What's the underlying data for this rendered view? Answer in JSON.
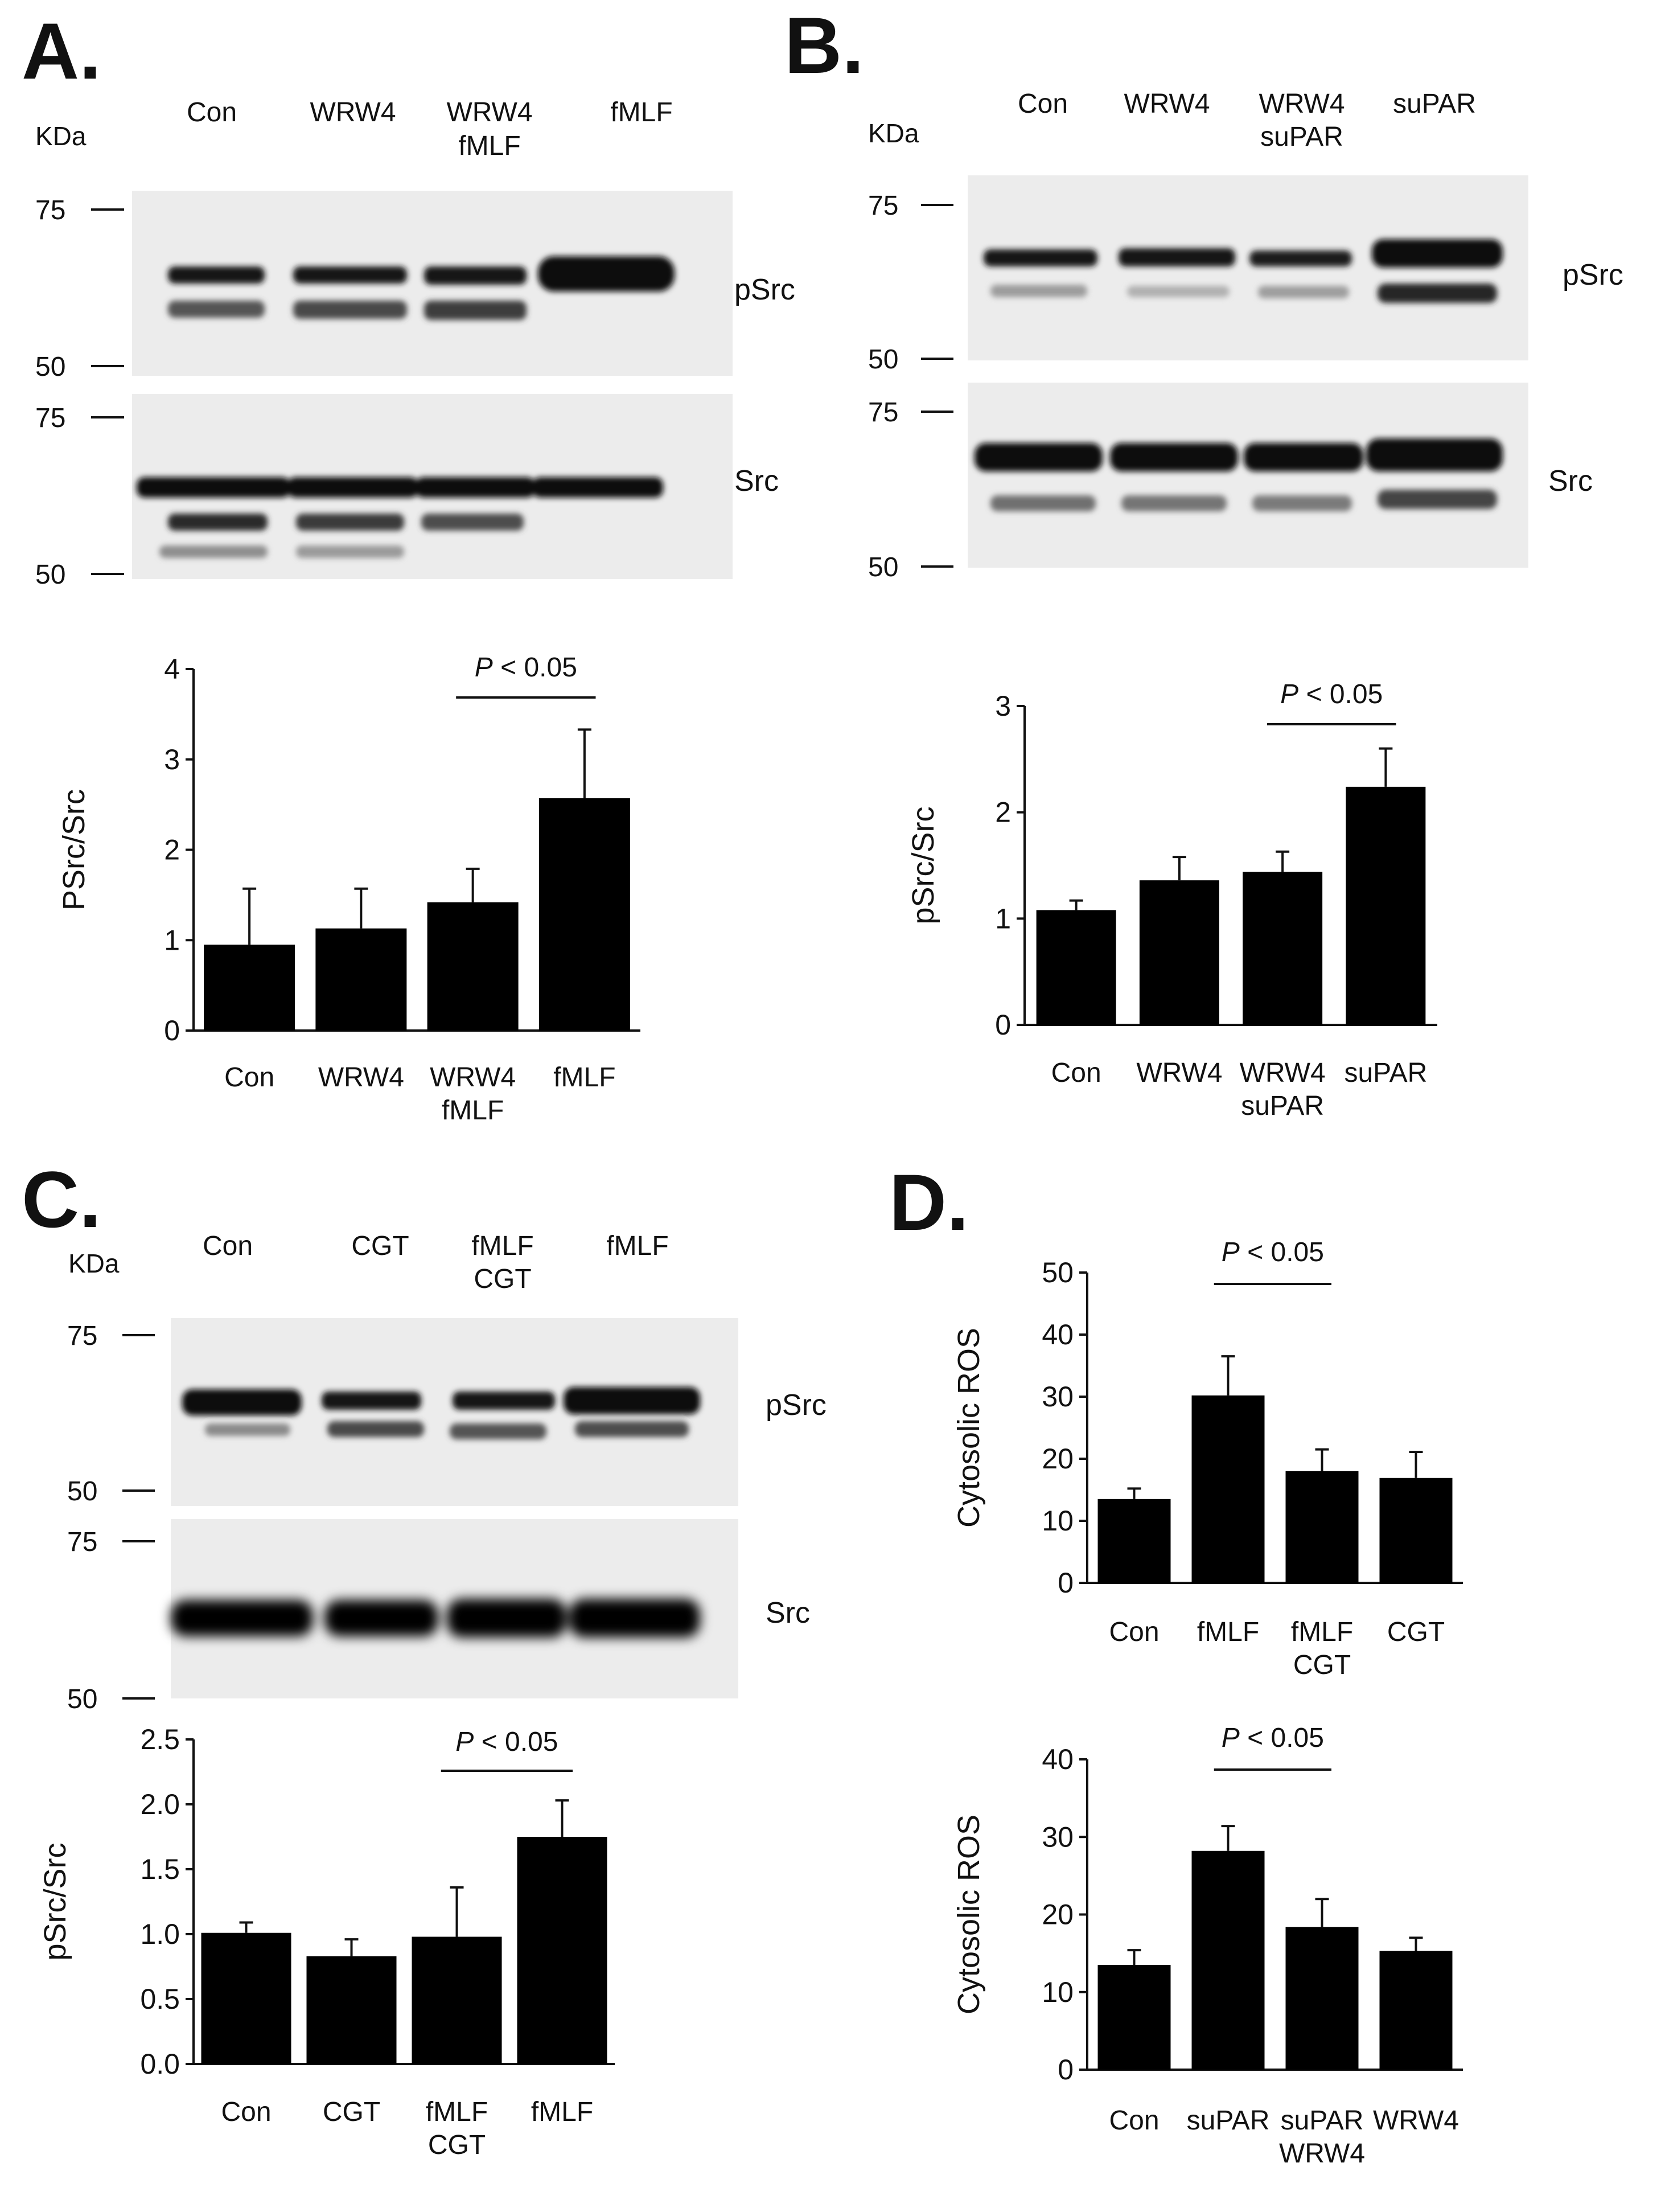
{
  "figure": {
    "panels": [
      {
        "letter": "A.",
        "kda_label": "KDa",
        "lanes": [
          [
            "Con"
          ],
          [
            "WRW4"
          ],
          [
            "WRW4",
            "fMLF"
          ],
          [
            "fMLF"
          ]
        ],
        "blots": [
          {
            "band_label": "pSrc",
            "markers": [
              "75",
              "50"
            ]
          },
          {
            "band_label": "Src",
            "markers": [
              "75",
              "50"
            ]
          }
        ]
      },
      {
        "letter": "B.",
        "kda_label": "KDa",
        "lanes": [
          [
            "Con"
          ],
          [
            "WRW4"
          ],
          [
            "WRW4",
            "suPAR"
          ],
          [
            "suPAR"
          ]
        ],
        "blots": [
          {
            "band_label": "pSrc",
            "markers": [
              "75",
              "50"
            ]
          },
          {
            "band_label": "Src",
            "markers": [
              "75",
              "50"
            ]
          }
        ]
      },
      {
        "letter": "C.",
        "kda_label": "KDa",
        "lanes": [
          [
            "Con"
          ],
          [
            "CGT"
          ],
          [
            "fMLF",
            "CGT"
          ],
          [
            "fMLF"
          ]
        ],
        "blots": [
          {
            "band_label": "pSrc",
            "markers": [
              "75",
              "50"
            ]
          },
          {
            "band_label": "Src",
            "markers": [
              "75",
              "50"
            ]
          }
        ]
      },
      {
        "letter": "D."
      }
    ]
  },
  "chart_data": [
    {
      "id": "A",
      "type": "bar",
      "categories": [
        [
          "Con"
        ],
        [
          "WRW4"
        ],
        [
          "WRW4",
          "fMLF"
        ],
        [
          "fMLF"
        ]
      ],
      "values": [
        0.95,
        1.13,
        1.42,
        2.57
      ],
      "errors": [
        0.62,
        0.44,
        0.37,
        0.76
      ],
      "ylabel": "PSrc/Src",
      "ylim": [
        0,
        4
      ],
      "yticks": [
        "0",
        "1",
        "2",
        "3",
        "4"
      ],
      "significance": {
        "label": "P < 0.05",
        "from_index": 2,
        "to_index": 3
      }
    },
    {
      "id": "B",
      "type": "bar",
      "categories": [
        [
          "Con"
        ],
        [
          "WRW4"
        ],
        [
          "WRW4",
          "suPAR"
        ],
        [
          "suPAR"
        ]
      ],
      "values": [
        1.08,
        1.36,
        1.44,
        2.24
      ],
      "errors": [
        0.09,
        0.22,
        0.19,
        0.36
      ],
      "ylabel": "pSrc/Src",
      "ylim": [
        0,
        3
      ],
      "yticks": [
        "0",
        "1",
        "2",
        "3"
      ],
      "significance": {
        "label": "P < 0.05",
        "from_index": 2,
        "to_index": 3
      }
    },
    {
      "id": "C",
      "type": "bar",
      "categories": [
        [
          "Con"
        ],
        [
          "CGT"
        ],
        [
          "fMLF",
          "CGT"
        ],
        [
          "fMLF"
        ]
      ],
      "values": [
        1.01,
        0.83,
        0.98,
        1.75
      ],
      "errors": [
        0.08,
        0.13,
        0.38,
        0.28
      ],
      "ylabel": "pSrc/Src",
      "ylim": [
        0,
        2.5
      ],
      "yticks": [
        "0.0",
        "0.5",
        "1.0",
        "1.5",
        "2.0",
        "2.5"
      ],
      "significance": {
        "label": "P < 0.05",
        "from_index": 2,
        "to_index": 3
      }
    },
    {
      "id": "D1",
      "type": "bar",
      "categories": [
        [
          "Con"
        ],
        [
          "fMLF"
        ],
        [
          "fMLF",
          "CGT"
        ],
        [
          "CGT"
        ]
      ],
      "values": [
        13.5,
        30.2,
        18.0,
        16.9
      ],
      "errors": [
        1.7,
        6.3,
        3.5,
        4.2
      ],
      "ylabel": "Cytosolic ROS",
      "ylim": [
        0,
        50
      ],
      "yticks": [
        "0",
        "10",
        "20",
        "30",
        "40",
        "50"
      ],
      "significance": {
        "label": "P < 0.05",
        "from_index": 1,
        "to_index": 2
      }
    },
    {
      "id": "D2",
      "type": "bar",
      "categories": [
        [
          "Con"
        ],
        [
          "suPAR"
        ],
        [
          "suPAR",
          "WRW4"
        ],
        [
          "WRW4"
        ]
      ],
      "values": [
        13.5,
        28.2,
        18.4,
        15.3
      ],
      "errors": [
        1.9,
        3.2,
        3.6,
        1.7
      ],
      "ylabel": "Cytosolic ROS",
      "ylim": [
        0,
        40
      ],
      "yticks": [
        "0",
        "10",
        "20",
        "30",
        "40"
      ],
      "significance": {
        "label": "P < 0.05",
        "from_index": 1,
        "to_index": 2
      }
    }
  ]
}
